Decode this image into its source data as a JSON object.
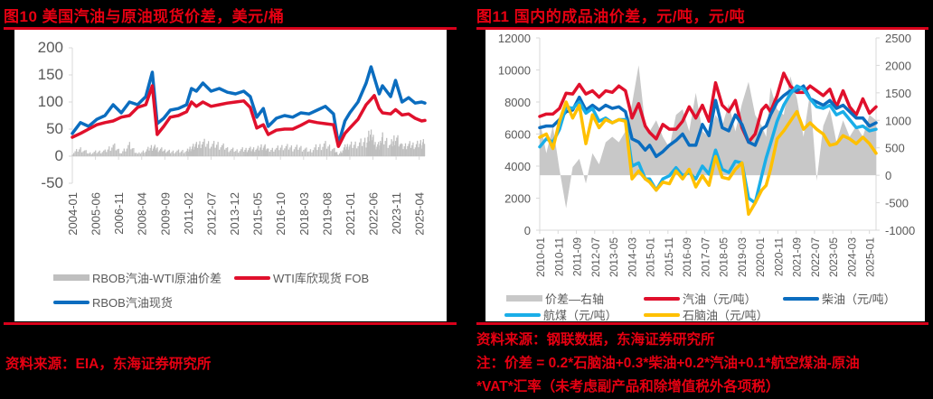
{
  "left": {
    "title": "图10  美国汽油与原油现货价差，美元/桶",
    "source": "资料来源：EIA，东海证券研究所",
    "legend": [
      {
        "label": "RBOB汽油-WTI原油价差",
        "color": "#bfbfbf",
        "kind": "bar"
      },
      {
        "label": "WTI库欣现货 FOB",
        "color": "#e0102c",
        "kind": "line"
      },
      {
        "label": "RBOB汽油现货",
        "color": "#0b6dbf",
        "kind": "line"
      }
    ]
  },
  "right": {
    "title": "图11  国内的成品油价差，元/吨，元/吨",
    "source": "资料来源：钢联数据，东海证券研究所",
    "note_line1": "注：价差 = 0.2*石脑油+0.3*柴油+0.2*汽油+0.1*航空煤油-原油",
    "note_line2": "*VAT*汇率（未考虑副产品和除增值税外各项税）",
    "legend": [
      {
        "label": "价差—右轴",
        "color": "#c8c8c8",
        "kind": "area"
      },
      {
        "label": "汽油（元/吨）",
        "color": "#e0102c",
        "kind": "line"
      },
      {
        "label": "柴油（元/吨）",
        "color": "#0b6dbf",
        "kind": "line"
      },
      {
        "label": "航煤（元/吨）",
        "color": "#1aaee8",
        "kind": "line"
      },
      {
        "label": "石脑油（元/吨）",
        "color": "#ffc000",
        "kind": "line"
      }
    ]
  },
  "chart_data": [
    {
      "type": "line",
      "title": "美国汽油与原油现货价差，美元/桶",
      "xlabel": "",
      "ylabel": "美元/桶",
      "ylim": [
        -50,
        200
      ],
      "yticks": [
        -50,
        0,
        50,
        100,
        150,
        200
      ],
      "categories": [
        "2004-01",
        "2005-06",
        "2006-11",
        "2008-04",
        "2009-09",
        "2011-02",
        "2012-07",
        "2013-12",
        "2015-05",
        "2016-10",
        "2018-03",
        "2019-08",
        "2021-01",
        "2022-06",
        "2023-11",
        "2025-04"
      ],
      "x_years": [
        2004.0,
        2004.5,
        2005.0,
        2005.5,
        2006.0,
        2006.5,
        2007.0,
        2007.5,
        2008.0,
        2008.5,
        2008.9,
        2009.2,
        2009.6,
        2010.0,
        2010.5,
        2011.0,
        2011.3,
        2011.6,
        2012.0,
        2012.5,
        2013.0,
        2013.5,
        2014.0,
        2014.5,
        2014.9,
        2015.3,
        2015.7,
        2016.0,
        2016.5,
        2017.0,
        2017.5,
        2018.0,
        2018.5,
        2019.0,
        2019.5,
        2020.0,
        2020.3,
        2020.7,
        2021.0,
        2021.5,
        2022.0,
        2022.3,
        2022.5,
        2022.8,
        2023.0,
        2023.5,
        2023.8,
        2024.2,
        2024.6,
        2025.0,
        2025.4,
        2025.6
      ],
      "series": [
        {
          "name": "RBOB汽油现货",
          "color": "#0b6dbf",
          "values": [
            42,
            62,
            55,
            68,
            75,
            95,
            80,
            100,
            95,
            110,
            155,
            60,
            70,
            85,
            88,
            95,
            125,
            120,
            135,
            120,
            125,
            118,
            115,
            120,
            110,
            72,
            88,
            55,
            70,
            75,
            72,
            80,
            78,
            85,
            92,
            78,
            22,
            65,
            80,
            100,
            135,
            165,
            145,
            115,
            130,
            110,
            140,
            100,
            108,
            98,
            100,
            98
          ]
        },
        {
          "name": "WTI库欣现货 FOB",
          "color": "#e0102c",
          "values": [
            35,
            42,
            50,
            58,
            62,
            65,
            72,
            75,
            90,
            95,
            130,
            40,
            55,
            72,
            75,
            82,
            100,
            92,
            100,
            92,
            95,
            98,
            100,
            102,
            90,
            52,
            58,
            40,
            48,
            50,
            50,
            57,
            65,
            62,
            60,
            58,
            18,
            42,
            52,
            68,
            95,
            105,
            112,
            88,
            80,
            78,
            86,
            76,
            78,
            70,
            65,
            66
          ]
        },
        {
          "name": "RBOB汽油-WTI原油价差",
          "color": "#bfbfbf",
          "kind": "bar",
          "values": [
            8,
            20,
            8,
            12,
            14,
            30,
            10,
            28,
            6,
            15,
            25,
            20,
            16,
            12,
            14,
            14,
            25,
            28,
            35,
            30,
            30,
            20,
            15,
            18,
            20,
            20,
            30,
            15,
            20,
            25,
            22,
            23,
            14,
            25,
            32,
            20,
            4,
            23,
            28,
            32,
            40,
            60,
            33,
            27,
            50,
            32,
            54,
            24,
            30,
            28,
            35,
            32
          ]
        }
      ]
    },
    {
      "type": "line",
      "title": "国内的成品油价差，元/吨，元/吨",
      "xlabel": "",
      "ylabel": "元/吨",
      "ylim": [
        0,
        12000
      ],
      "y2lim": [
        -1000,
        2500
      ],
      "yticks": [
        0,
        2000,
        4000,
        6000,
        8000,
        10000,
        12000
      ],
      "y2ticks": [
        -1000,
        -500,
        0,
        500,
        1000,
        1500,
        2000,
        2500
      ],
      "categories": [
        "2010-01",
        "2010-11",
        "2011-09",
        "2012-07",
        "2013-05",
        "2014-03",
        "2015-01",
        "2015-11",
        "2016-09",
        "2017-07",
        "2018-05",
        "2019-03",
        "2020-01",
        "2020-11",
        "2021-09",
        "2022-07",
        "2023-05",
        "2024-03",
        "2025-01"
      ],
      "x_years": [
        2010.0,
        2010.3,
        2010.6,
        2010.9,
        2011.2,
        2011.5,
        2011.8,
        2012.1,
        2012.4,
        2012.7,
        2013.0,
        2013.3,
        2013.6,
        2013.9,
        2014.2,
        2014.5,
        2014.8,
        2015.0,
        2015.3,
        2015.6,
        2015.9,
        2016.2,
        2016.5,
        2016.8,
        2017.1,
        2017.4,
        2017.7,
        2018.0,
        2018.3,
        2018.6,
        2018.9,
        2019.2,
        2019.5,
        2019.8,
        2020.1,
        2020.3,
        2020.5,
        2020.8,
        2021.1,
        2021.4,
        2021.7,
        2022.0,
        2022.3,
        2022.6,
        2022.9,
        2023.2,
        2023.5,
        2023.8,
        2024.1,
        2024.4,
        2024.7,
        2025.0,
        2025.3
      ],
      "series": [
        {
          "name": "汽油（元/吨）",
          "color": "#e0102c",
          "values": [
            7100,
            7250,
            7250,
            7600,
            8550,
            8500,
            9100,
            8500,
            8700,
            8300,
            8700,
            8600,
            9000,
            8700,
            7000,
            7900,
            6500,
            6100,
            5700,
            6600,
            6300,
            6300,
            6800,
            7700,
            7000,
            7800,
            6800,
            9200,
            7800,
            7400,
            8100,
            6400,
            5500,
            6000,
            7500,
            7800,
            7400,
            8400,
            9800,
            9000,
            8600,
            8600,
            9000,
            8700,
            8400,
            8800,
            7700,
            8700,
            7700,
            7200,
            8200,
            7300,
            7700
          ]
        },
        {
          "name": "柴油（元/吨）",
          "color": "#0b6dbf",
          "values": [
            6400,
            6500,
            6500,
            6900,
            7400,
            7500,
            8300,
            7500,
            7800,
            7500,
            7800,
            7600,
            7700,
            7400,
            5700,
            5500,
            5000,
            5300,
            4600,
            4900,
            5300,
            5600,
            6000,
            5300,
            5300,
            6600,
            5900,
            8100,
            6400,
            6200,
            7200,
            6600,
            5500,
            5300,
            6300,
            6500,
            7200,
            8000,
            8400,
            8700,
            8700,
            9000,
            8200,
            8000,
            7800,
            8100,
            7600,
            7800,
            7400,
            7000,
            7000,
            6500,
            6700
          ]
        },
        {
          "name": "航煤（元/吨）",
          "color": "#1aaee8",
          "values": [
            5200,
            5700,
            5500,
            6300,
            7700,
            7600,
            8000,
            7300,
            7600,
            6800,
            7000,
            6700,
            6900,
            6900,
            4000,
            4200,
            3200,
            3200,
            2500,
            3200,
            3400,
            3900,
            3400,
            3600,
            3200,
            4000,
            3500,
            5000,
            3800,
            3600,
            4300,
            4200,
            2000,
            1700,
            3400,
            4500,
            5400,
            6800,
            7800,
            8500,
            9000,
            8800,
            8200,
            7700,
            7600,
            7800,
            7200,
            7400,
            6900,
            6400,
            6500,
            6200,
            6300
          ]
        },
        {
          "name": "石脑油（元/吨）",
          "color": "#ffc000",
          "values": [
            5800,
            6000,
            5100,
            6800,
            8000,
            7000,
            7800,
            5400,
            7200,
            6400,
            6900,
            6700,
            6900,
            6800,
            3200,
            3700,
            3200,
            3000,
            2500,
            3000,
            2900,
            3700,
            3200,
            3800,
            2700,
            3400,
            2800,
            4600,
            3300,
            3200,
            3800,
            4200,
            1000,
            1700,
            2500,
            2800,
            3800,
            5700,
            6200,
            6800,
            7400,
            6300,
            6700,
            6300,
            6000,
            5300,
            5400,
            5900,
            5700,
            5400,
            5800,
            5400,
            4800
          ]
        },
        {
          "name": "价差—右轴",
          "color": "#c8c8c8",
          "kind": "area",
          "axis": "right",
          "values": [
            1000,
            400,
            900,
            100,
            -600,
            150,
            300,
            -150,
            400,
            200,
            600,
            700,
            600,
            800,
            1300,
            2000,
            900,
            800,
            1000,
            700,
            500,
            1100,
            1200,
            800,
            1500,
            800,
            700,
            1100,
            900,
            1300,
            800,
            1300,
            1700,
            1100,
            900,
            700,
            1600,
            1200,
            1100,
            1800,
            1400,
            700,
            1500,
            -100,
            900,
            1200,
            600,
            1000,
            700,
            900,
            700,
            1100,
            1000
          ]
        }
      ]
    }
  ]
}
